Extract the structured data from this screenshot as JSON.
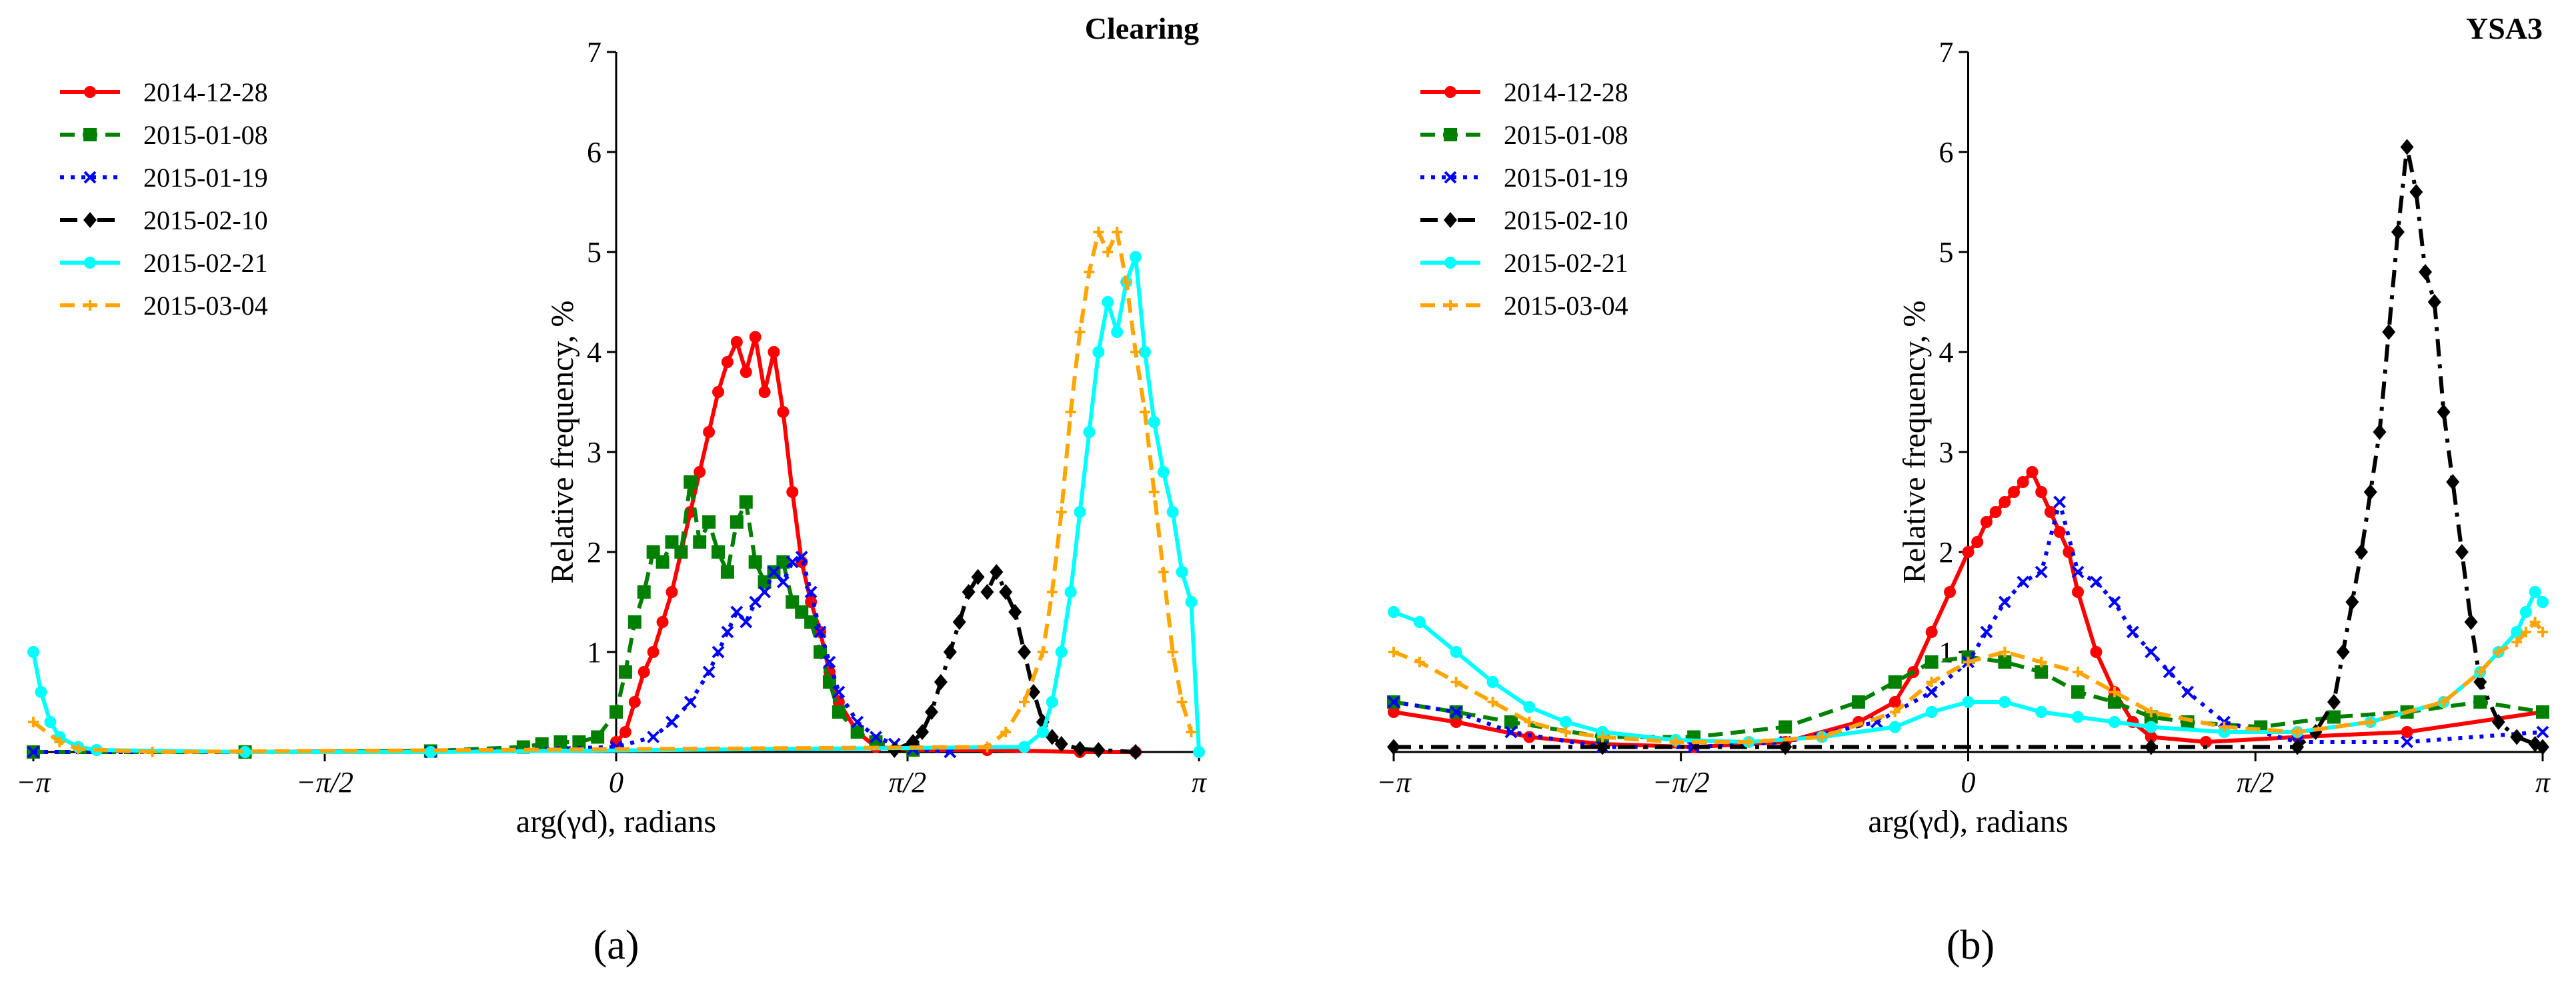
{
  "chart_data": [
    {
      "type": "line",
      "panel_label": "(a)",
      "title": "Clearing",
      "xlabel": "arg(γd), radians",
      "ylabel": "Relative frequency, %",
      "xlim": [
        -3.14159,
        3.14159
      ],
      "ylim": [
        0,
        7
      ],
      "xticks": [
        {
          "value": -3.14159,
          "label": "−π"
        },
        {
          "value": -1.5708,
          "label": "−π/2"
        },
        {
          "value": 0,
          "label": "0"
        },
        {
          "value": 1.5708,
          "label": "π/2"
        },
        {
          "value": 3.14159,
          "label": "π"
        }
      ],
      "yticks": [
        1,
        2,
        3,
        4,
        5,
        6,
        7
      ],
      "legend_position": "top-left",
      "series": [
        {
          "name": "2014-12-28",
          "color": "#ff0000",
          "marker": "circle",
          "dash": "solid",
          "x": [
            0.0,
            0.05,
            0.1,
            0.15,
            0.2,
            0.25,
            0.3,
            0.35,
            0.4,
            0.45,
            0.5,
            0.55,
            0.6,
            0.65,
            0.7,
            0.75,
            0.8,
            0.85,
            0.9,
            0.95,
            1.0,
            1.05,
            1.1,
            1.15,
            1.2,
            1.3,
            1.4,
            1.6,
            2.0,
            2.5,
            2.8
          ],
          "y": [
            0.1,
            0.2,
            0.5,
            0.8,
            1.0,
            1.3,
            1.6,
            2.0,
            2.4,
            2.8,
            3.2,
            3.6,
            3.9,
            4.1,
            3.8,
            4.15,
            3.6,
            4.0,
            3.4,
            2.6,
            1.9,
            1.5,
            1.2,
            0.8,
            0.5,
            0.2,
            0.05,
            0.02,
            0.02,
            0.0,
            0.0
          ]
        },
        {
          "name": "2015-01-08",
          "color": "#008000",
          "marker": "square",
          "dash": "dashed",
          "x": [
            -3.14159,
            -2.0,
            -1.0,
            -0.5,
            -0.4,
            -0.3,
            -0.2,
            -0.1,
            0.0,
            0.05,
            0.1,
            0.15,
            0.2,
            0.25,
            0.3,
            0.35,
            0.4,
            0.45,
            0.5,
            0.55,
            0.6,
            0.65,
            0.7,
            0.75,
            0.8,
            0.85,
            0.9,
            0.95,
            1.0,
            1.05,
            1.1,
            1.15,
            1.2,
            1.3,
            1.4,
            1.6
          ],
          "y": [
            0.0,
            0.0,
            0.01,
            0.05,
            0.08,
            0.1,
            0.1,
            0.15,
            0.4,
            0.8,
            1.3,
            1.6,
            2.0,
            1.9,
            2.1,
            2.0,
            2.7,
            2.1,
            2.3,
            2.0,
            1.8,
            2.3,
            2.5,
            1.9,
            1.7,
            1.8,
            1.9,
            1.5,
            1.4,
            1.3,
            1.0,
            0.7,
            0.4,
            0.2,
            0.1,
            0.02
          ]
        },
        {
          "name": "2015-01-19",
          "color": "#0000ff",
          "marker": "cross",
          "dash": "dotted",
          "x": [
            -3.14159,
            -1.0,
            0.0,
            0.2,
            0.3,
            0.4,
            0.5,
            0.55,
            0.6,
            0.65,
            0.7,
            0.75,
            0.8,
            0.85,
            0.9,
            0.95,
            1.0,
            1.05,
            1.1,
            1.15,
            1.2,
            1.3,
            1.4,
            1.5,
            1.6,
            1.8
          ],
          "y": [
            0.0,
            0.0,
            0.05,
            0.15,
            0.3,
            0.5,
            0.8,
            1.0,
            1.2,
            1.4,
            1.3,
            1.5,
            1.6,
            1.8,
            1.7,
            1.9,
            1.95,
            1.6,
            1.2,
            0.9,
            0.6,
            0.3,
            0.15,
            0.08,
            0.03,
            0.0
          ]
        },
        {
          "name": "2015-02-10",
          "color": "#000000",
          "marker": "diamond",
          "dash": "dashdot",
          "x": [
            1.5,
            1.6,
            1.65,
            1.7,
            1.75,
            1.8,
            1.85,
            1.9,
            1.95,
            2.0,
            2.05,
            2.1,
            2.15,
            2.2,
            2.25,
            2.3,
            2.35,
            2.4,
            2.5,
            2.6,
            2.8
          ],
          "y": [
            0.02,
            0.1,
            0.2,
            0.4,
            0.7,
            1.0,
            1.3,
            1.6,
            1.75,
            1.6,
            1.8,
            1.6,
            1.4,
            1.0,
            0.6,
            0.3,
            0.15,
            0.08,
            0.03,
            0.02,
            0.0
          ]
        },
        {
          "name": "2015-02-21",
          "color": "#00ffff",
          "marker": "circle",
          "dash": "solid",
          "x": [
            -3.14159,
            -3.1,
            -3.05,
            -3.0,
            -2.9,
            -2.8,
            -2.0,
            -1.0,
            2.2,
            2.3,
            2.35,
            2.4,
            2.45,
            2.5,
            2.55,
            2.6,
            2.65,
            2.7,
            2.75,
            2.8,
            2.85,
            2.9,
            2.95,
            3.0,
            3.05,
            3.1,
            3.14159
          ],
          "y": [
            1.0,
            0.6,
            0.3,
            0.15,
            0.05,
            0.02,
            0.0,
            0.0,
            0.05,
            0.2,
            0.5,
            1.0,
            1.6,
            2.4,
            3.2,
            4.0,
            4.5,
            4.2,
            4.7,
            4.95,
            4.0,
            3.3,
            2.8,
            2.4,
            1.8,
            1.5,
            0.0
          ]
        },
        {
          "name": "2015-03-04",
          "color": "#ffa500",
          "marker": "plus",
          "dash": "dashed",
          "x": [
            -3.14159,
            -3.0,
            -2.9,
            -2.5,
            2.0,
            2.1,
            2.2,
            2.3,
            2.35,
            2.4,
            2.45,
            2.5,
            2.55,
            2.6,
            2.65,
            2.7,
            2.75,
            2.8,
            2.85,
            2.9,
            2.95,
            3.0,
            3.05,
            3.1
          ],
          "y": [
            0.3,
            0.1,
            0.03,
            0.0,
            0.05,
            0.2,
            0.5,
            1.0,
            1.6,
            2.4,
            3.4,
            4.2,
            4.8,
            5.2,
            5.0,
            5.2,
            4.7,
            4.0,
            3.4,
            2.6,
            1.8,
            1.0,
            0.5,
            0.2
          ]
        }
      ]
    },
    {
      "type": "line",
      "panel_label": "(b)",
      "title": "YSA3",
      "xlabel": "arg(γd), radians",
      "ylabel": "Relative frequency, %",
      "xlim": [
        -3.14159,
        3.14159
      ],
      "ylim": [
        0,
        7
      ],
      "xticks": [
        {
          "value": -3.14159,
          "label": "−π"
        },
        {
          "value": -1.5708,
          "label": "−π/2"
        },
        {
          "value": 0,
          "label": "0"
        },
        {
          "value": 1.5708,
          "label": "π/2"
        },
        {
          "value": 3.14159,
          "label": "π"
        }
      ],
      "yticks": [
        1,
        2,
        3,
        4,
        5,
        6,
        7
      ],
      "legend_position": "top-left",
      "series": [
        {
          "name": "2014-12-28",
          "color": "#ff0000",
          "marker": "circle",
          "dash": "solid",
          "x": [
            -3.14159,
            -2.8,
            -2.4,
            -2.0,
            -1.5,
            -1.0,
            -0.6,
            -0.4,
            -0.3,
            -0.2,
            -0.1,
            0.0,
            0.05,
            0.1,
            0.15,
            0.2,
            0.25,
            0.3,
            0.35,
            0.4,
            0.45,
            0.5,
            0.55,
            0.6,
            0.7,
            0.8,
            0.9,
            1.0,
            1.3,
            1.8,
            2.4,
            3.14159
          ],
          "y": [
            0.4,
            0.3,
            0.15,
            0.08,
            0.05,
            0.1,
            0.3,
            0.5,
            0.8,
            1.2,
            1.6,
            2.0,
            2.1,
            2.3,
            2.4,
            2.5,
            2.6,
            2.7,
            2.8,
            2.6,
            2.4,
            2.2,
            2.0,
            1.6,
            1.0,
            0.6,
            0.3,
            0.15,
            0.1,
            0.15,
            0.2,
            0.4
          ]
        },
        {
          "name": "2015-01-08",
          "color": "#008000",
          "marker": "square",
          "dash": "dashed",
          "x": [
            -3.14159,
            -2.8,
            -2.5,
            -2.0,
            -1.5,
            -1.0,
            -0.6,
            -0.4,
            -0.2,
            0.0,
            0.2,
            0.4,
            0.6,
            0.8,
            1.0,
            1.2,
            1.6,
            2.0,
            2.4,
            2.8,
            3.14159
          ],
          "y": [
            0.5,
            0.4,
            0.3,
            0.15,
            0.15,
            0.25,
            0.5,
            0.7,
            0.9,
            0.95,
            0.9,
            0.8,
            0.6,
            0.5,
            0.35,
            0.3,
            0.25,
            0.35,
            0.4,
            0.5,
            0.4
          ]
        },
        {
          "name": "2015-01-19",
          "color": "#0000ff",
          "marker": "cross",
          "dash": "dotted",
          "x": [
            -3.14159,
            -2.8,
            -2.5,
            -2.0,
            -1.5,
            -1.0,
            -0.5,
            -0.2,
            0.0,
            0.1,
            0.2,
            0.3,
            0.4,
            0.5,
            0.6,
            0.7,
            0.8,
            0.9,
            1.0,
            1.1,
            1.2,
            1.4,
            1.8,
            2.4,
            3.14159
          ],
          "y": [
            0.5,
            0.4,
            0.2,
            0.05,
            0.05,
            0.1,
            0.3,
            0.6,
            0.9,
            1.2,
            1.5,
            1.7,
            1.8,
            2.5,
            1.8,
            1.7,
            1.5,
            1.2,
            1.0,
            0.8,
            0.6,
            0.3,
            0.1,
            0.1,
            0.2
          ]
        },
        {
          "name": "2015-02-10",
          "color": "#000000",
          "marker": "diamond",
          "dash": "dashdot",
          "x": [
            -3.14159,
            -2.0,
            -1.0,
            1.0,
            1.8,
            1.9,
            2.0,
            2.05,
            2.1,
            2.15,
            2.2,
            2.25,
            2.3,
            2.35,
            2.4,
            2.45,
            2.5,
            2.55,
            2.6,
            2.65,
            2.7,
            2.75,
            2.8,
            2.9,
            3.0,
            3.1,
            3.14159
          ],
          "y": [
            0.05,
            0.05,
            0.05,
            0.05,
            0.05,
            0.2,
            0.5,
            1.0,
            1.5,
            2.0,
            2.6,
            3.2,
            4.2,
            5.2,
            6.05,
            5.6,
            4.8,
            4.5,
            3.4,
            2.7,
            2.0,
            1.3,
            0.7,
            0.3,
            0.15,
            0.08,
            0.05
          ]
        },
        {
          "name": "2015-02-21",
          "color": "#00ffff",
          "marker": "circle",
          "dash": "solid",
          "x": [
            -3.14159,
            -3.0,
            -2.8,
            -2.6,
            -2.4,
            -2.2,
            -2.0,
            -1.6,
            -1.2,
            -0.8,
            -0.4,
            -0.2,
            0.0,
            0.2,
            0.4,
            0.6,
            0.8,
            1.0,
            1.4,
            1.8,
            2.2,
            2.6,
            2.8,
            2.9,
            3.0,
            3.05,
            3.1,
            3.14159
          ],
          "y": [
            1.4,
            1.3,
            1.0,
            0.7,
            0.45,
            0.3,
            0.2,
            0.12,
            0.1,
            0.15,
            0.25,
            0.4,
            0.5,
            0.5,
            0.4,
            0.35,
            0.3,
            0.25,
            0.2,
            0.2,
            0.3,
            0.5,
            0.8,
            1.0,
            1.2,
            1.4,
            1.6,
            1.5
          ]
        },
        {
          "name": "2015-03-04",
          "color": "#ffa500",
          "marker": "plus",
          "dash": "dashed",
          "x": [
            -3.14159,
            -3.0,
            -2.8,
            -2.6,
            -2.4,
            -2.2,
            -2.0,
            -1.6,
            -1.2,
            -0.8,
            -0.4,
            -0.2,
            0.0,
            0.2,
            0.4,
            0.6,
            0.8,
            1.0,
            1.4,
            1.8,
            2.2,
            2.6,
            2.8,
            2.9,
            3.0,
            3.05,
            3.1,
            3.14159
          ],
          "y": [
            1.0,
            0.9,
            0.7,
            0.5,
            0.3,
            0.2,
            0.15,
            0.1,
            0.1,
            0.15,
            0.4,
            0.7,
            0.9,
            1.0,
            0.9,
            0.8,
            0.6,
            0.4,
            0.25,
            0.2,
            0.3,
            0.5,
            0.8,
            1.0,
            1.1,
            1.2,
            1.3,
            1.2
          ]
        }
      ]
    }
  ]
}
